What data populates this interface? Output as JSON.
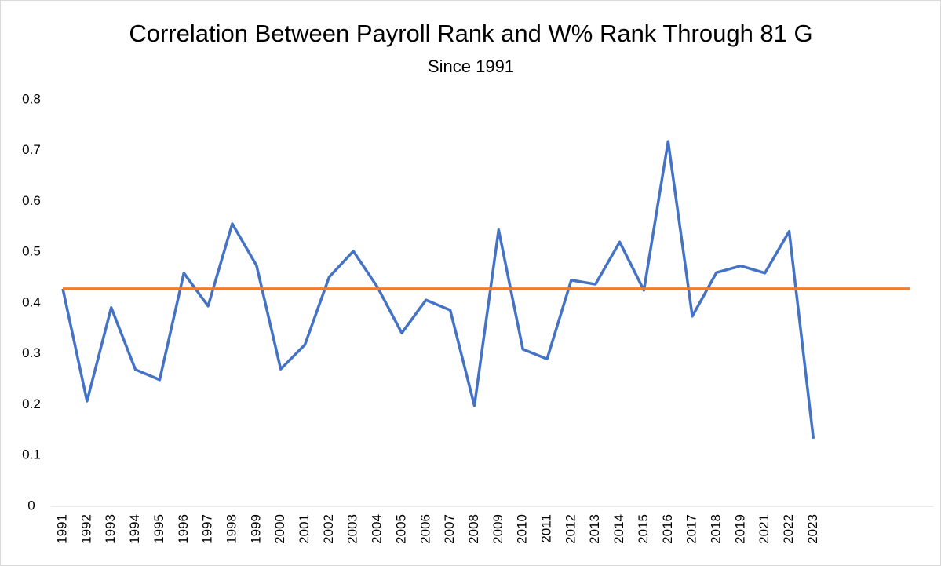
{
  "chart_data": {
    "type": "line",
    "title": "Correlation Between Payroll Rank and W% Rank Through 81 G",
    "subtitle": "Since 1991",
    "categories": [
      "1991",
      "1992",
      "1993",
      "1994",
      "1995",
      "1996",
      "1997",
      "1998",
      "1999",
      "2000",
      "2001",
      "2002",
      "2003",
      "2004",
      "2005",
      "2006",
      "2007",
      "2008",
      "2009",
      "2010",
      "2011",
      "2012",
      "2013",
      "2014",
      "2015",
      "2016",
      "2017",
      "2018",
      "2019",
      "2021",
      "2022",
      "2023",
      null,
      null,
      null,
      null
    ],
    "series": [
      {
        "color": "#4472c4",
        "values": [
          0.428,
          0.207,
          0.391,
          0.269,
          0.249,
          0.459,
          0.394,
          0.556,
          0.474,
          0.27,
          0.318,
          0.451,
          0.502,
          0.431,
          0.341,
          0.406,
          0.386,
          0.198,
          0.544,
          0.309,
          0.29,
          0.445,
          0.437,
          0.52,
          0.425,
          0.718,
          0.374,
          0.46,
          0.473,
          0.459,
          0.541,
          0.133,
          null,
          null,
          null,
          null
        ]
      },
      {
        "color": "#ed7d31",
        "values": [
          0.428,
          0.428,
          0.428,
          0.428,
          0.428,
          0.428,
          0.428,
          0.428,
          0.428,
          0.428,
          0.428,
          0.428,
          0.428,
          0.428,
          0.428,
          0.428,
          0.428,
          0.428,
          0.428,
          0.428,
          0.428,
          0.428,
          0.428,
          0.428,
          0.428,
          0.428,
          0.428,
          0.428,
          0.428,
          0.428,
          0.428,
          0.428,
          0.428,
          0.428,
          0.428,
          0.428
        ]
      }
    ],
    "ylim": [
      0,
      0.8
    ],
    "yticks": [
      {
        "value": 0,
        "label": "0"
      },
      0.1,
      0.2,
      0.3,
      0.4,
      0.5,
      0.6,
      0.7,
      0.8
    ],
    "grid": false
  }
}
